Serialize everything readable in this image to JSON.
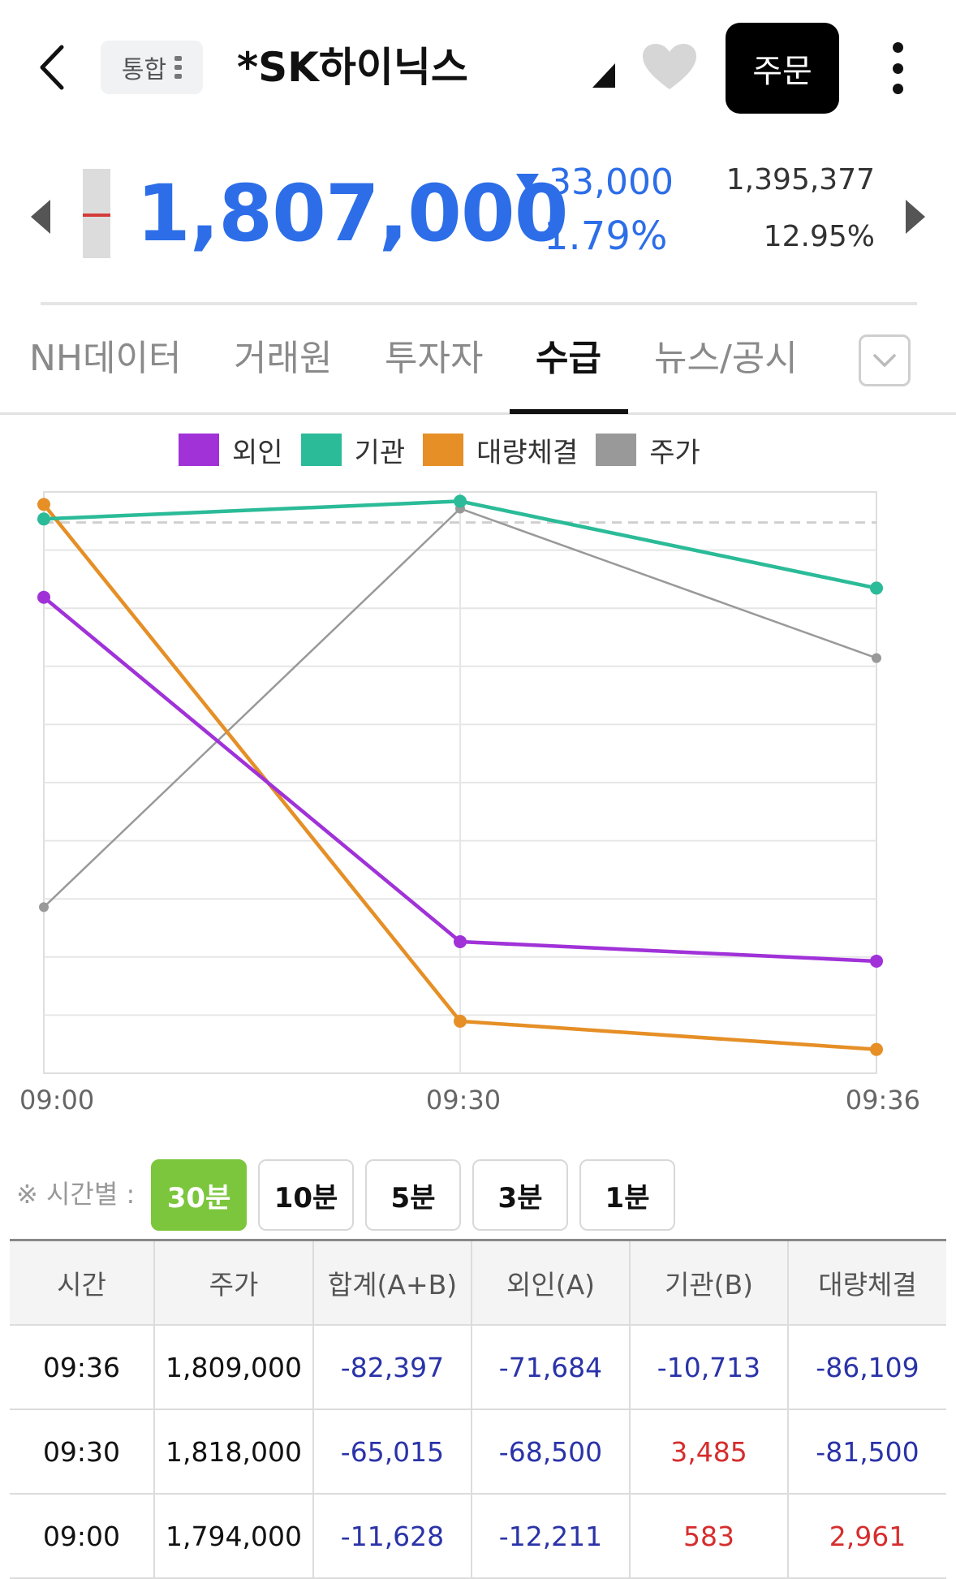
{
  "header": {
    "scope_label": "통합",
    "stock_name": "*SK하이닉스",
    "order_label": "주문",
    "icons": [
      "back-icon",
      "menu-dots-icon",
      "caret-icon",
      "heart-icon",
      "more-icon"
    ]
  },
  "quote": {
    "price": "1,807,000",
    "change": "33,000",
    "change_rate": "1.79%",
    "volume": "1,395,377",
    "turnover_rate": "12.95%",
    "down_color": "#2d6ee8"
  },
  "tabs": [
    {
      "label": "NH데이터",
      "active": false
    },
    {
      "label": "거래원",
      "active": false
    },
    {
      "label": "투자자",
      "active": false
    },
    {
      "label": "수급",
      "active": true
    },
    {
      "label": "뉴스/공시",
      "active": false
    }
  ],
  "legend": [
    {
      "label": "외인",
      "color": "#a032d8"
    },
    {
      "label": "기관",
      "color": "#2bbb98"
    },
    {
      "label": "대량체결",
      "color": "#e58f26"
    },
    {
      "label": "주가",
      "color": "#999999"
    }
  ],
  "chart_data": {
    "type": "line",
    "x": [
      "09:00",
      "09:30",
      "09:36"
    ],
    "series": [
      {
        "name": "외인",
        "color": "#a032d8",
        "values": [
          -12211,
          -68500,
          -71684
        ]
      },
      {
        "name": "기관",
        "color": "#2bbb98",
        "values": [
          583,
          3485,
          -10713
        ]
      },
      {
        "name": "대량체결",
        "color": "#e58f26",
        "values": [
          2961,
          -81500,
          -86109
        ]
      },
      {
        "name": "주가",
        "color": "#999999",
        "values": [
          1794000,
          1818000,
          1809000
        ]
      }
    ],
    "flow_range": [
      -90000,
      5000
    ],
    "price_range": [
      1784000,
      1819000
    ],
    "baseline": 0,
    "grid": true,
    "legend": "top"
  },
  "interval": {
    "label": "※ 시간별 :",
    "options": [
      {
        "label": "30분",
        "active": true
      },
      {
        "label": "10분",
        "active": false
      },
      {
        "label": "5분",
        "active": false
      },
      {
        "label": "3분",
        "active": false
      },
      {
        "label": "1분",
        "active": false
      }
    ]
  },
  "table": {
    "headers": [
      "시간",
      "주가",
      "합계(A+B)",
      "외인(A)",
      "기관(B)",
      "대량체결"
    ],
    "rows": [
      [
        "09:36",
        "1,809,000",
        "-82,397",
        "-71,684",
        "-10,713",
        "-86,109"
      ],
      [
        "09:30",
        "1,818,000",
        "-65,015",
        "-68,500",
        "3,485",
        "-81,500"
      ],
      [
        "09:00",
        "1,794,000",
        "-11,628",
        "-12,211",
        "583",
        "2,961"
      ]
    ]
  }
}
